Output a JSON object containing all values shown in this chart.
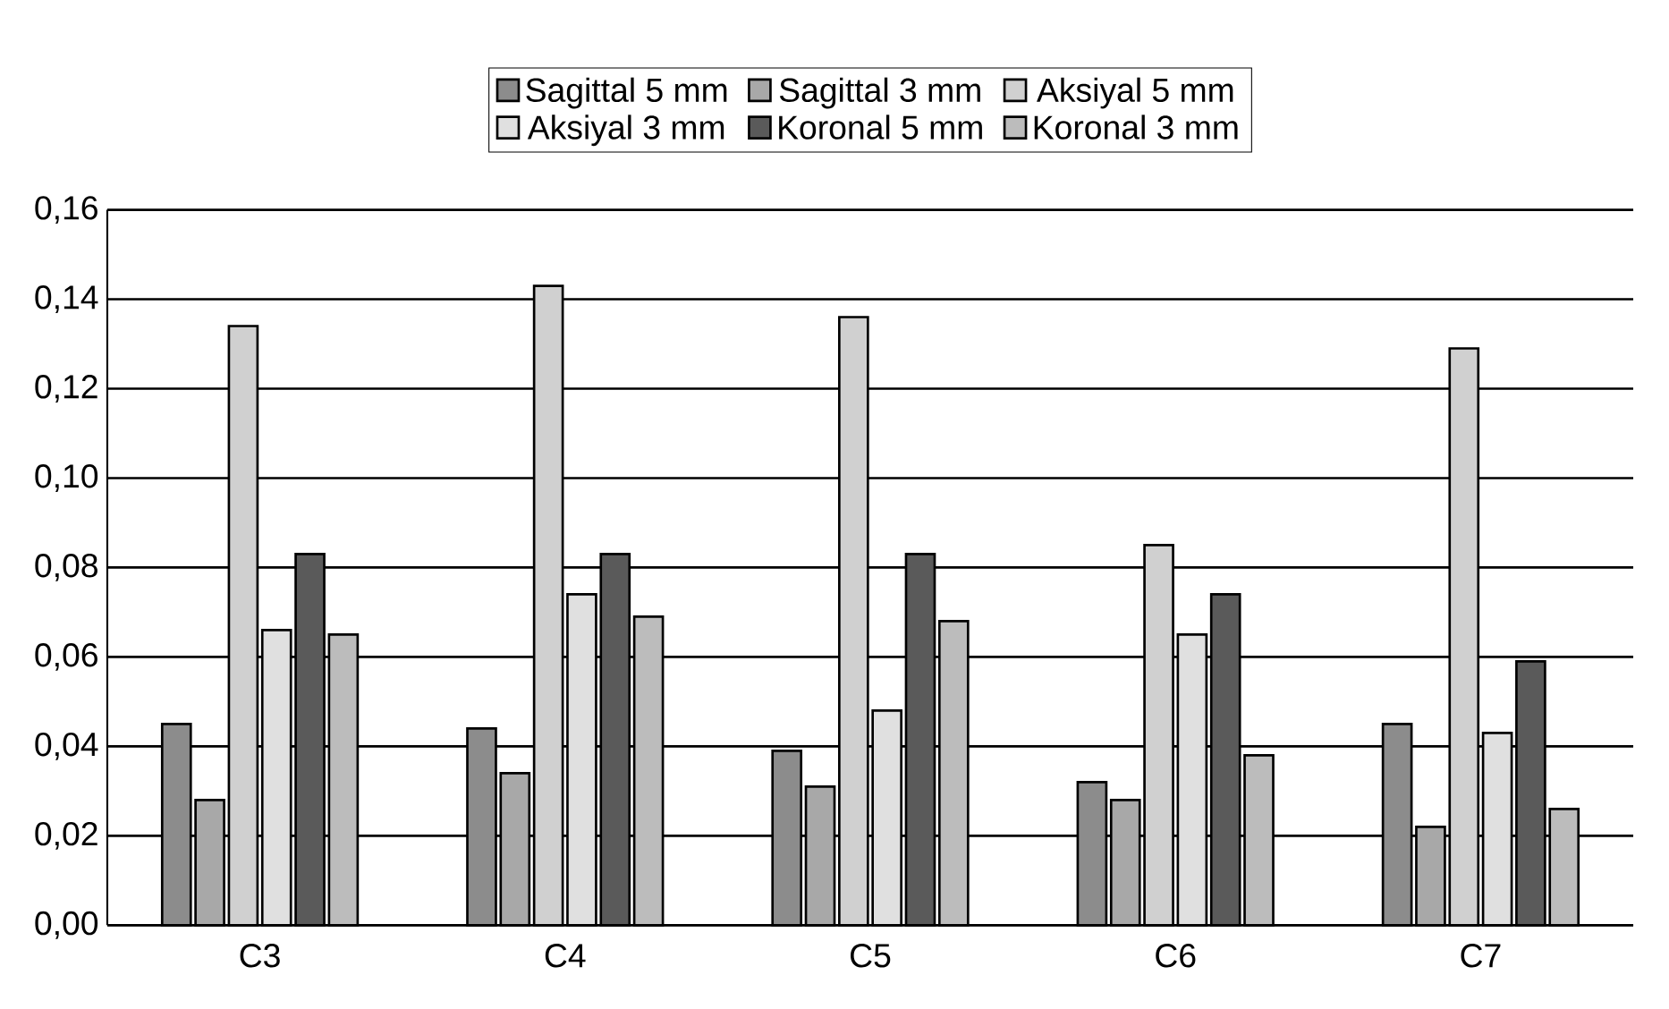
{
  "chart_data": {
    "type": "bar",
    "categories": [
      "C3",
      "C4",
      "C5",
      "C6",
      "C7"
    ],
    "series": [
      {
        "name": "Sagittal 5 mm",
        "color": "#8c8c8c",
        "values": [
          0.045,
          0.044,
          0.039,
          0.032,
          0.045
        ]
      },
      {
        "name": "Sagittal 3 mm",
        "color": "#a8a8a8",
        "values": [
          0.028,
          0.034,
          0.031,
          0.028,
          0.022
        ]
      },
      {
        "name": "Aksiyal 5 mm",
        "color": "#d0d0d0",
        "values": [
          0.134,
          0.143,
          0.136,
          0.085,
          0.129
        ]
      },
      {
        "name": "Aksiyal 3 mm",
        "color": "#e0e0e0",
        "values": [
          0.066,
          0.074,
          0.048,
          0.065,
          0.043
        ]
      },
      {
        "name": "Koronal 5 mm",
        "color": "#5a5a5a",
        "values": [
          0.083,
          0.083,
          0.083,
          0.074,
          0.059
        ]
      },
      {
        "name": "Koronal 3 mm",
        "color": "#bcbcbc",
        "values": [
          0.065,
          0.069,
          0.068,
          0.038,
          0.026
        ]
      }
    ],
    "ylim": [
      0,
      0.16
    ],
    "yticks": [
      {
        "value": 0,
        "label": "0,00"
      },
      {
        "value": 0.02,
        "label": "0,02"
      },
      {
        "value": 0.04,
        "label": "0,04"
      },
      {
        "value": 0.06,
        "label": "0,06"
      },
      {
        "value": 0.08,
        "label": "0,08"
      },
      {
        "value": 0.1,
        "label": "0,10"
      },
      {
        "value": 0.12,
        "label": "0,12"
      },
      {
        "value": 0.14,
        "label": "0,14"
      },
      {
        "value": 0.16,
        "label": "0,16"
      }
    ],
    "grid": "y",
    "legend": "top"
  }
}
